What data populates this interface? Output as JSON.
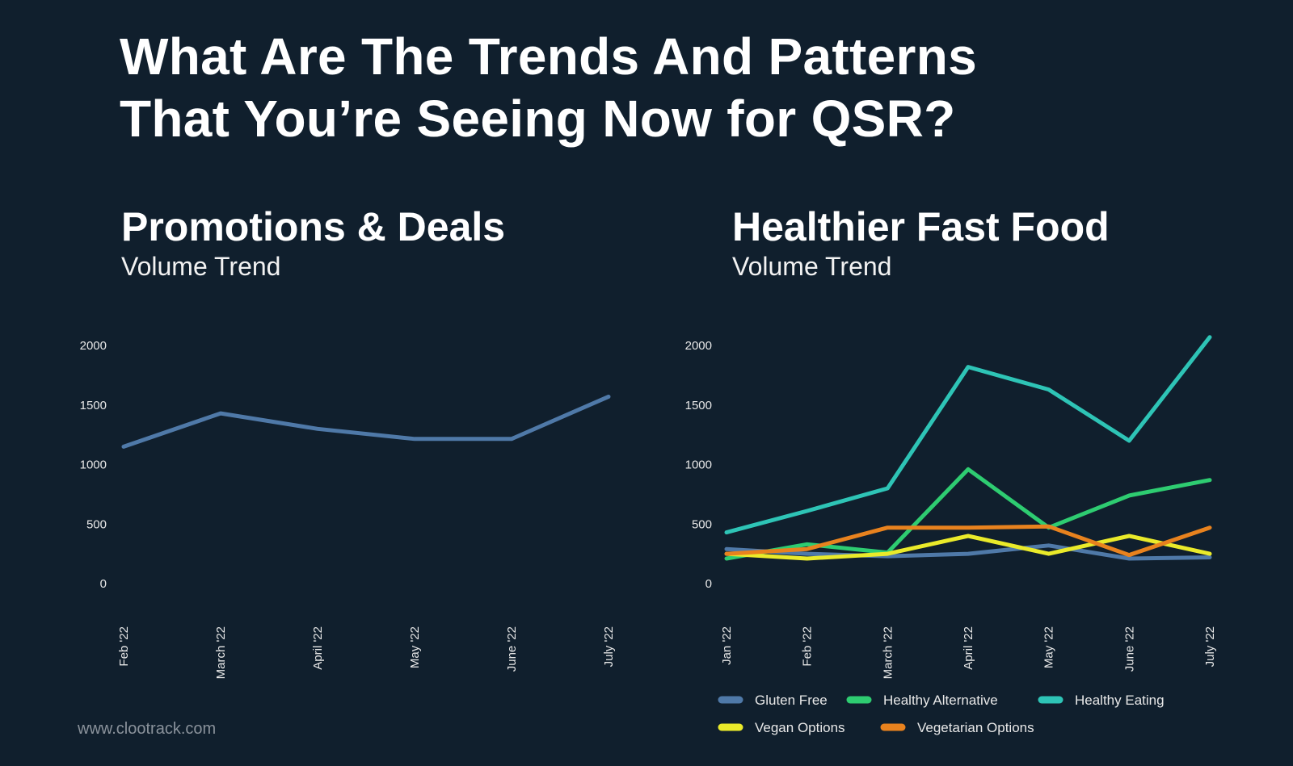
{
  "title_line1": "What Are The Trends And Patterns",
  "title_line2": "That You’re Seeing Now for QSR?",
  "footer": "www.clootrack.com",
  "chart_data": [
    {
      "type": "line",
      "title": "Promotions & Deals",
      "subtitle": "Volume Trend",
      "categories": [
        "Feb '22",
        "March '22",
        "April '22",
        "May '22",
        "June '22",
        "July '22"
      ],
      "yticks": [
        0,
        500,
        1000,
        1500,
        2000
      ],
      "ylim": [
        0,
        2000
      ],
      "grid": false,
      "series": [
        {
          "color": "#4f79a8",
          "values": [
            1150,
            1430,
            1300,
            1215,
            1215,
            1570
          ]
        }
      ]
    },
    {
      "type": "line",
      "title": "Healthier Fast Food",
      "subtitle": "Volume Trend",
      "categories": [
        "Jan '22",
        "Feb '22",
        "March '22",
        "April '22",
        "May '22",
        "June '22",
        "July '22"
      ],
      "yticks": [
        0,
        500,
        1000,
        1500,
        2000
      ],
      "ylim": [
        0,
        2000
      ],
      "grid": false,
      "legend": "bottom",
      "series": [
        {
          "name": "Gluten Free",
          "color": "#4f79a8",
          "values": [
            290,
            250,
            230,
            250,
            320,
            210,
            220
          ]
        },
        {
          "name": "Healthy Alternative",
          "color": "#2ecc71",
          "values": [
            210,
            330,
            260,
            960,
            470,
            740,
            870
          ]
        },
        {
          "name": "Healthy Eating",
          "color": "#2ec4b6",
          "values": [
            430,
            610,
            800,
            1820,
            1630,
            1200,
            2070
          ]
        },
        {
          "name": "Vegan Options",
          "color": "#eaea2a",
          "values": [
            250,
            210,
            250,
            400,
            250,
            400,
            250
          ]
        },
        {
          "name": "Vegetarian Options",
          "color": "#e8821e",
          "values": [
            250,
            290,
            470,
            470,
            480,
            240,
            470
          ]
        }
      ]
    }
  ]
}
